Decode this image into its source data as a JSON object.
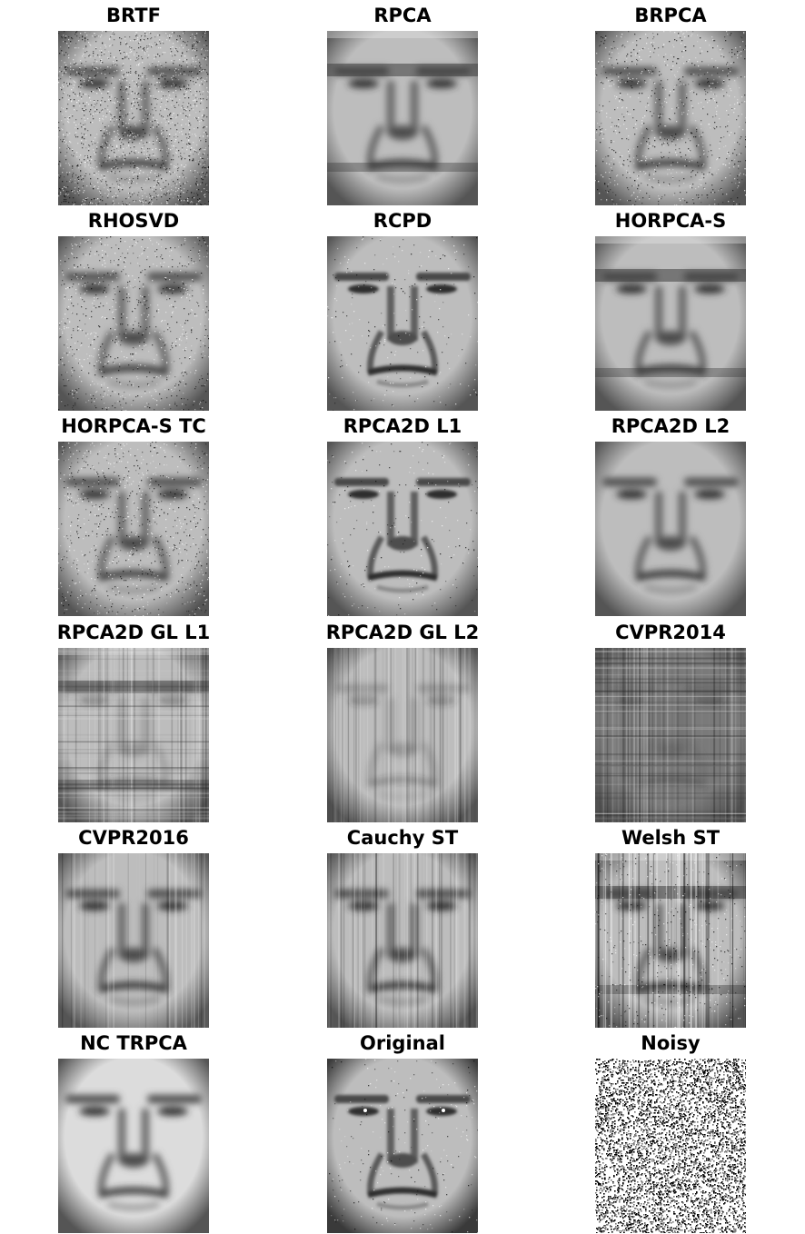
{
  "figure": {
    "panels": [
      {
        "title": "BRTF",
        "kind": "face",
        "style": "noisy-face"
      },
      {
        "title": "RPCA",
        "kind": "face",
        "style": "blurred-banded"
      },
      {
        "title": "BRPCA",
        "kind": "face",
        "style": "grainy-blurred"
      },
      {
        "title": "RHOSVD",
        "kind": "face",
        "style": "grainy-blurred"
      },
      {
        "title": "RCPD",
        "kind": "face",
        "style": "detailed"
      },
      {
        "title": "HORPCA-S",
        "kind": "face",
        "style": "blurred-banded"
      },
      {
        "title": "HORPCA-S TC",
        "kind": "face",
        "style": "blurred-grainy"
      },
      {
        "title": "RPCA2D L1",
        "kind": "face",
        "style": "detailed"
      },
      {
        "title": "RPCA2D L2",
        "kind": "face",
        "style": "smooth"
      },
      {
        "title": "RPCA2D GL L1",
        "kind": "face",
        "style": "grid-banded"
      },
      {
        "title": "RPCA2D GL L2",
        "kind": "face",
        "style": "vertical-streaks"
      },
      {
        "title": "CVPR2014",
        "kind": "face",
        "style": "dark-grid"
      },
      {
        "title": "CVPR2016",
        "kind": "face",
        "style": "streaked-face"
      },
      {
        "title": "Cauchy ST",
        "kind": "face",
        "style": "vertical-streaks-face"
      },
      {
        "title": "Welsh ST",
        "kind": "face",
        "style": "dark-streaks-face"
      },
      {
        "title": "NC TRPCA",
        "kind": "face",
        "style": "smooth-bright"
      },
      {
        "title": "Original",
        "kind": "face",
        "style": "original"
      },
      {
        "title": "Noisy",
        "kind": "noise",
        "style": "salt-pepper"
      }
    ]
  }
}
